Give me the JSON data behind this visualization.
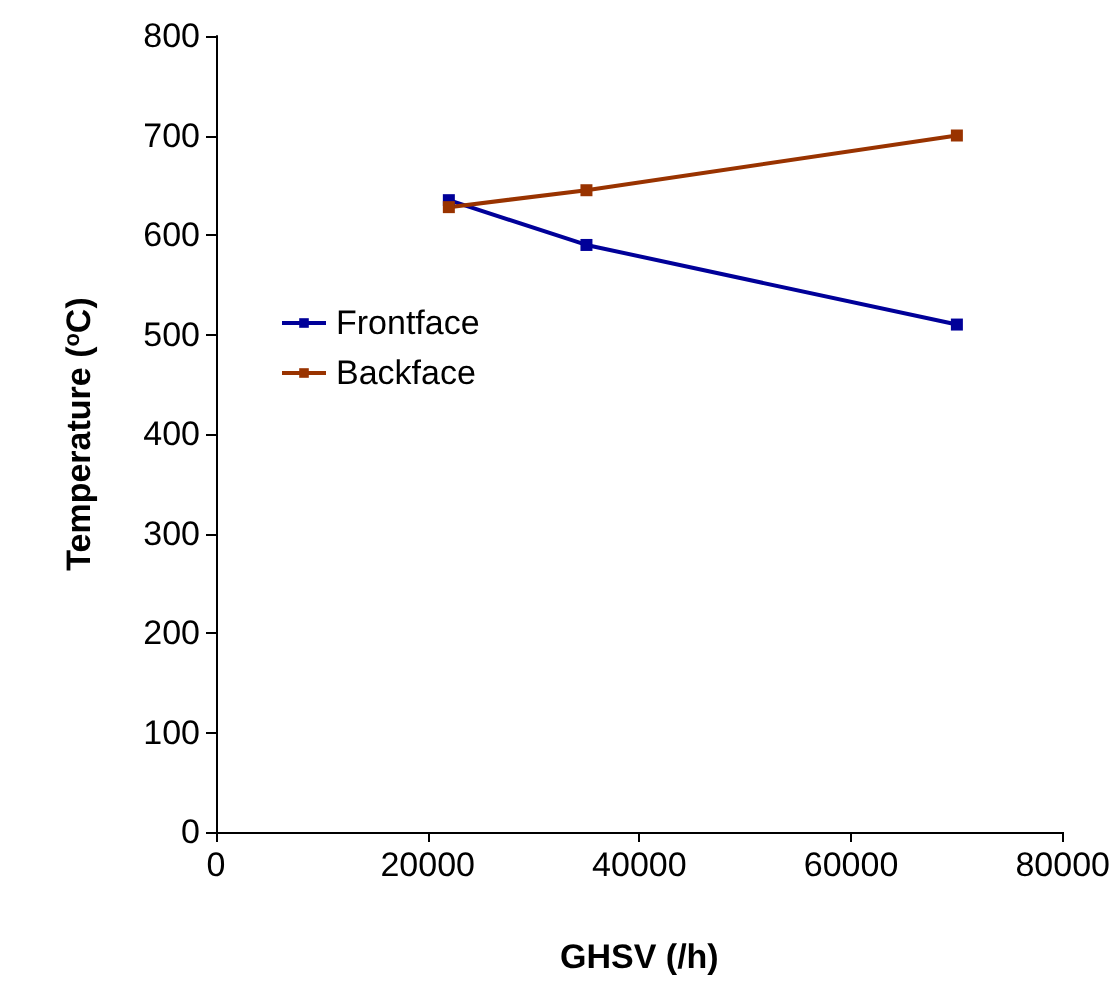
{
  "chart_data": {
    "type": "line",
    "xlabel": "GHSV (/h)",
    "ylabel": "Temperature ($^{o}$C)",
    "x": [
      22000,
      35000,
      70000
    ],
    "series": [
      {
        "name": "Frontface",
        "color": "#000099",
        "values": [
          635,
          590,
          510
        ]
      },
      {
        "name": "Backface",
        "color": "#993300",
        "values": [
          628,
          645,
          700
        ]
      }
    ],
    "xlim": [
      0,
      80000
    ],
    "xticks": [
      0,
      20000,
      40000,
      60000,
      80000
    ],
    "ylim": [
      0,
      800
    ],
    "yticks": [
      0,
      100,
      200,
      300,
      400,
      500,
      600,
      700,
      800
    ],
    "grid": false,
    "legend": "left",
    "marker": "square",
    "line_style": "solid"
  }
}
